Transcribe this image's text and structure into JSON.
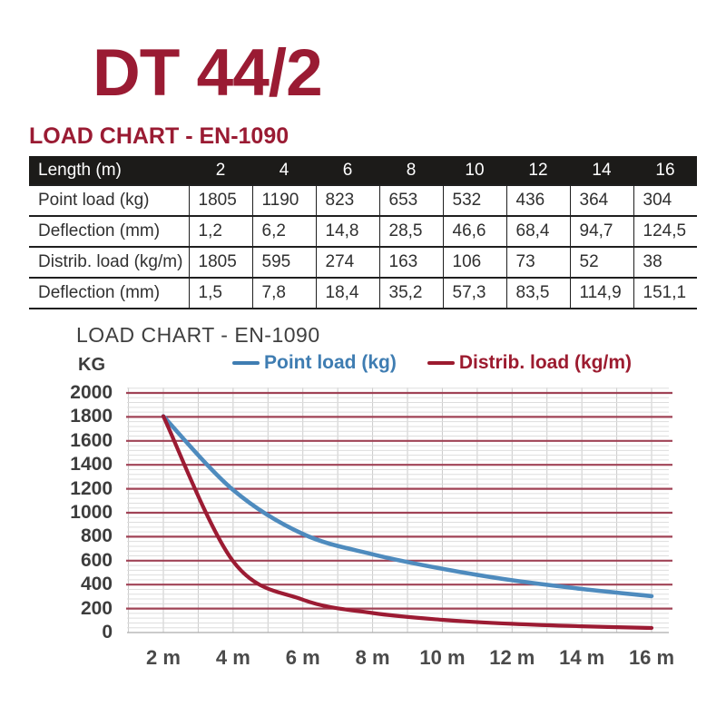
{
  "page": {
    "title": "DT 44/2",
    "heading": "LOAD CHART - EN-1090"
  },
  "table": {
    "header": {
      "label": "Length (m)",
      "values": [
        "2",
        "4",
        "6",
        "8",
        "10",
        "12",
        "14",
        "16"
      ]
    },
    "rows": [
      {
        "label": "Point load (kg)",
        "values": [
          "1805",
          "1190",
          "823",
          "653",
          "532",
          "436",
          "364",
          "304"
        ]
      },
      {
        "label": "Deflection (mm)",
        "values": [
          "1,2",
          "6,2",
          "14,8",
          "28,5",
          "46,6",
          "68,4",
          "94,7",
          "124,5"
        ]
      },
      {
        "label": "Distrib. load (kg/m)",
        "values": [
          "1805",
          "595",
          "274",
          "163",
          "106",
          "73",
          "52",
          "38"
        ]
      },
      {
        "label": "Deflection (mm)",
        "values": [
          "1,5",
          "7,8",
          "18,4",
          "35,2",
          "57,3",
          "83,5",
          "114,9",
          "151,1"
        ]
      }
    ]
  },
  "chart": {
    "subtitle": "LOAD CHART - EN-1090",
    "y_axis_unit": "KG",
    "legend": [
      {
        "label": "Point load (kg)",
        "color": "#3F7DB2"
      },
      {
        "label": "Distrib. load (kg/m)",
        "color": "#9C1B2F"
      }
    ]
  },
  "chart_data": {
    "type": "line",
    "title": "LOAD CHART - EN-1090",
    "ylabel": "KG",
    "x": [
      2,
      4,
      6,
      8,
      10,
      12,
      14,
      16
    ],
    "x_tick_labels": [
      "2 m",
      "4 m",
      "6 m",
      "8 m",
      "10 m",
      "12 m",
      "14 m",
      "16 m"
    ],
    "series": [
      {
        "name": "Point load (kg)",
        "color": "#4E8BBE",
        "values": [
          1805,
          1190,
          823,
          653,
          532,
          436,
          364,
          304
        ]
      },
      {
        "name": "Distrib. load (kg/m)",
        "color": "#9C1B33",
        "values": [
          1805,
          595,
          274,
          163,
          106,
          73,
          52,
          38
        ]
      }
    ],
    "ylim": [
      0,
      2040
    ],
    "y_ticks": [
      2000,
      1800,
      1600,
      1400,
      1200,
      1000,
      800,
      600,
      400,
      200,
      0
    ],
    "grid": {
      "minor_step_kg": 40,
      "major_step_kg": 200,
      "x_step_m": 1,
      "x_range_m": [
        1,
        16
      ],
      "legend_position": "top"
    }
  },
  "colors": {
    "brand_red": "#9A1B33",
    "table_header_bg": "#1C1B19",
    "table_header_text": "#FFFFFF",
    "table_text": "#303030",
    "table_border": "#1F1F1F",
    "subtitle_gray": "#3F3F3F",
    "axis_label": "#3D3D3D",
    "axis_label_x": "#4A4A4A",
    "grid_major": "#A04356",
    "grid_minor": "#DDDDDD",
    "grid_vertical": "#CACACA",
    "axis_line": "#ACACAC"
  }
}
